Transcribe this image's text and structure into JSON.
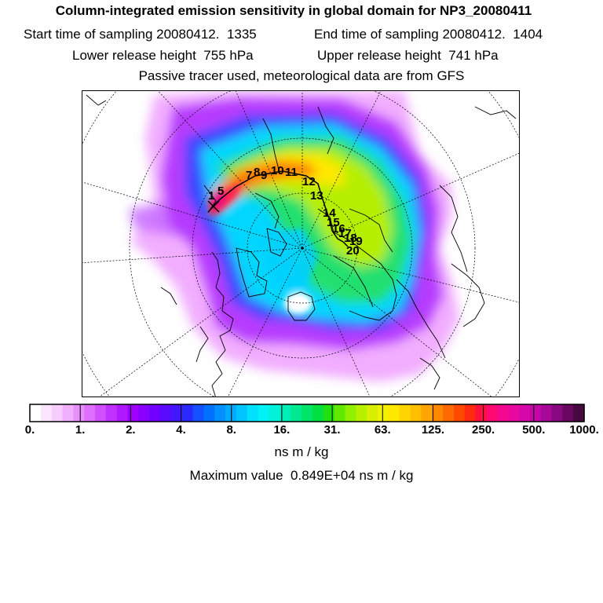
{
  "header": {
    "title": "Column-integrated emission sensitivity in global domain for NP3_20080411",
    "start_label": "Start time of sampling 20080412.",
    "start_value": "1335",
    "end_label": "End time of sampling 20080412.",
    "end_value": "1404",
    "lower_label": "Lower release height",
    "lower_value": "755 hPa",
    "upper_label": "Upper release height",
    "upper_value": "741 hPa",
    "tracer_note": "Passive tracer used, meteorological data are from GFS"
  },
  "map": {
    "projection": "polar stereographic",
    "track_labels": [
      "1",
      "5",
      "7",
      "8",
      "9",
      "10",
      "11",
      "12",
      "13",
      "14",
      "15",
      "16",
      "17",
      "18",
      "19",
      "20"
    ]
  },
  "colorbar": {
    "tick_labels": [
      "0.",
      "1.",
      "2.",
      "4.",
      "8.",
      "16.",
      "31.",
      "63.",
      "125.",
      "250.",
      "500.",
      "1000."
    ],
    "colors": [
      "#ffffff",
      "#fce6ff",
      "#f7ccff",
      "#f0b0ff",
      "#e890ff",
      "#df70ff",
      "#d050ff",
      "#c030ff",
      "#b018ff",
      "#a000ff",
      "#8a00ff",
      "#7000ff",
      "#5a0aff",
      "#4418ff",
      "#2a2aff",
      "#1450ff",
      "#0070ff",
      "#0090ff",
      "#00aaff",
      "#00c4ff",
      "#00e0ff",
      "#00f2f6",
      "#00f0d8",
      "#00eeb8",
      "#00e890",
      "#00e468",
      "#00e040",
      "#20e010",
      "#60e800",
      "#90f000",
      "#b8f000",
      "#d8f000",
      "#f0f000",
      "#ffe800",
      "#ffd400",
      "#ffbe00",
      "#ffa400",
      "#ff8800",
      "#ff6a00",
      "#ff4a00",
      "#ff2a10",
      "#ff1040",
      "#ff0a70",
      "#f50890",
      "#e808a0",
      "#d808a8",
      "#c408a8",
      "#a8089a",
      "#880880",
      "#680860",
      "#480840"
    ],
    "unit": "ns m / kg"
  },
  "footer": {
    "max_label": "Maximum value",
    "max_value": "0.849E+04",
    "max_unit": "ns m / kg"
  }
}
